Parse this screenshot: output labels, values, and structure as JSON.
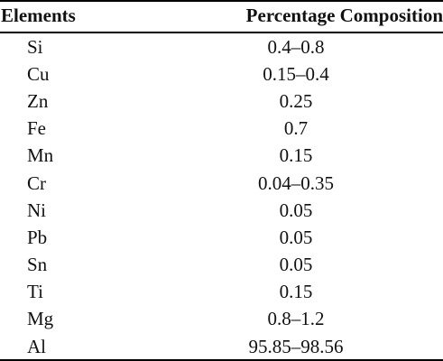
{
  "table": {
    "headers": {
      "elements": "Elements",
      "percentage": "Percentage Composition"
    },
    "rows": [
      {
        "element": "Si",
        "percentage": "0.4–0.8"
      },
      {
        "element": "Cu",
        "percentage": "0.15–0.4"
      },
      {
        "element": "Zn",
        "percentage": "0.25"
      },
      {
        "element": "Fe",
        "percentage": "0.7"
      },
      {
        "element": "Mn",
        "percentage": "0.15"
      },
      {
        "element": "Cr",
        "percentage": "0.04–0.35"
      },
      {
        "element": "Ni",
        "percentage": "0.05"
      },
      {
        "element": "Pb",
        "percentage": "0.05"
      },
      {
        "element": "Sn",
        "percentage": "0.05"
      },
      {
        "element": "Ti",
        "percentage": "0.15"
      },
      {
        "element": "Mg",
        "percentage": "0.8–1.2"
      },
      {
        "element": "Al",
        "percentage": "95.85–98.56"
      }
    ]
  }
}
